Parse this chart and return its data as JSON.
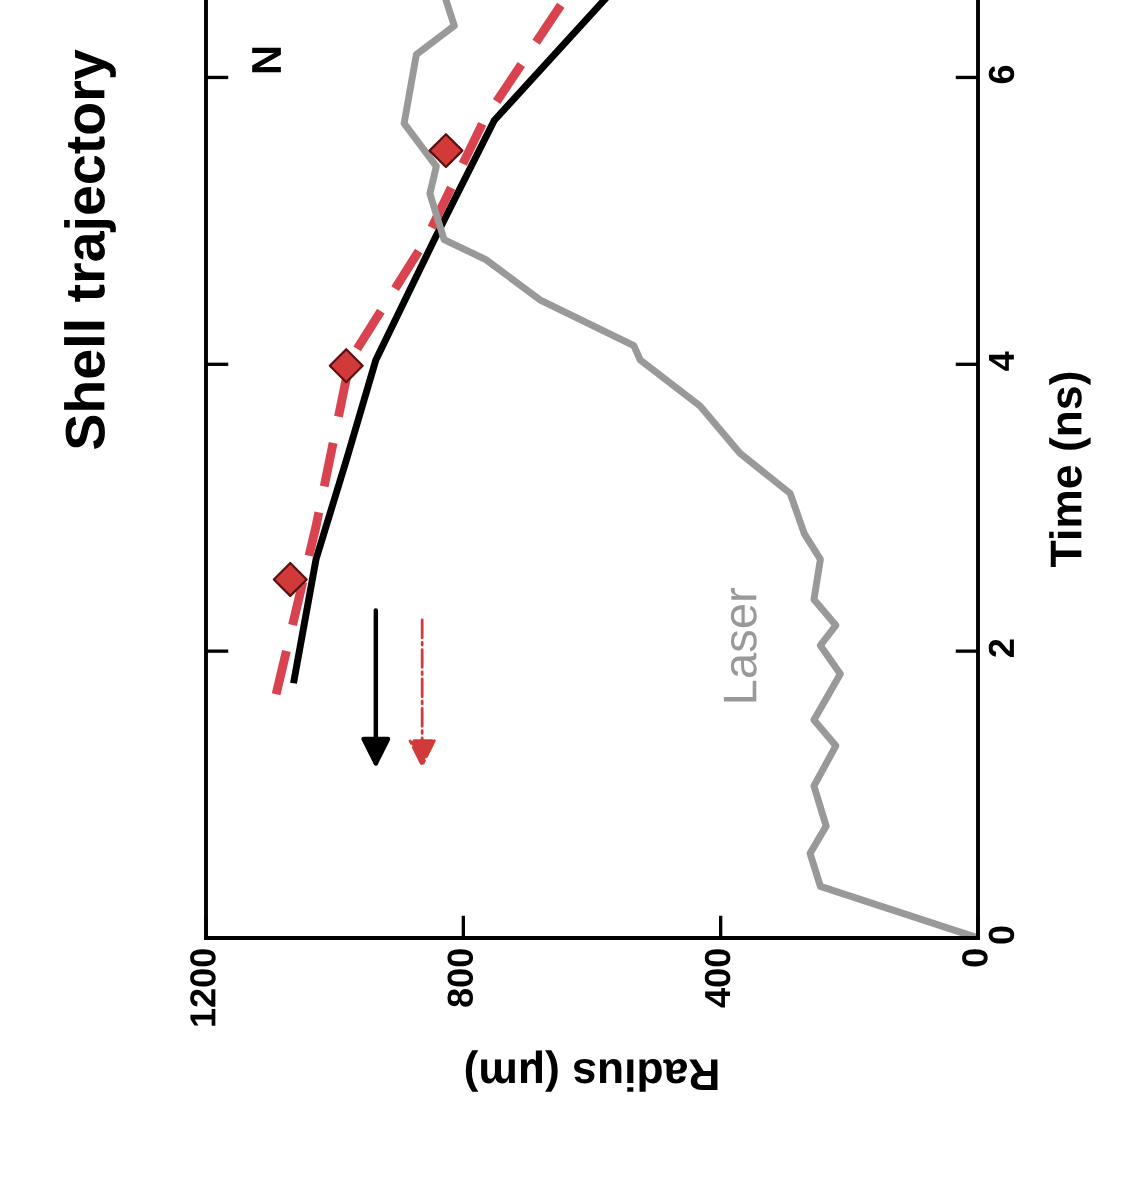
{
  "chart_data": {
    "type": "line",
    "title": "Shell trajectory",
    "xlabel": "Radius (μm)",
    "ylabel": "Time (ns)",
    "xlim": [
      1200,
      0
    ],
    "xticks": [
      0,
      400,
      800,
      1200
    ],
    "ylim": [
      0,
      6.54
    ],
    "yticks": [
      0,
      2,
      4,
      6
    ],
    "grid": false,
    "legend": false,
    "series": [
      {
        "color": "#000000",
        "line_style": "solid",
        "x": [
          1063,
          1029,
          982,
          936,
          845,
          752,
          581
        ],
        "values": [
          1.8,
          2.64,
          3.33,
          4.03,
          4.87,
          5.7,
          6.54
        ]
      },
      {
        "color": "#d9434f",
        "line_style": "dashed",
        "x": [
          1091,
          1029,
          976,
          858,
          768,
          643
        ],
        "values": [
          1.7,
          2.87,
          4.03,
          4.87,
          5.7,
          6.54
        ]
      },
      {
        "type": "scatter",
        "color": "#d23a3a",
        "marker": "diamond",
        "x": [
          1069,
          982,
          827
        ],
        "values": [
          2.5,
          3.99,
          5.49
        ]
      },
      {
        "color": "#999999",
        "line_style": "solid",
        "x": [
          0,
          245,
          261,
          236,
          255,
          221,
          255,
          214,
          245,
          221,
          255,
          245,
          270,
          292,
          370,
          432,
          525,
          535,
          681,
          765,
          830,
          852,
          842,
          892,
          873,
          814,
          827
        ],
        "values": [
          0,
          0.36,
          0.59,
          0.78,
          1.06,
          1.34,
          1.52,
          1.84,
          2.04,
          2.18,
          2.36,
          2.64,
          2.82,
          3.1,
          3.38,
          3.71,
          4.03,
          4.13,
          4.45,
          4.73,
          4.87,
          5.19,
          5.38,
          5.68,
          6.16,
          6.36,
          6.54
        ]
      }
    ],
    "annotations": [
      "Laser",
      "N"
    ]
  }
}
